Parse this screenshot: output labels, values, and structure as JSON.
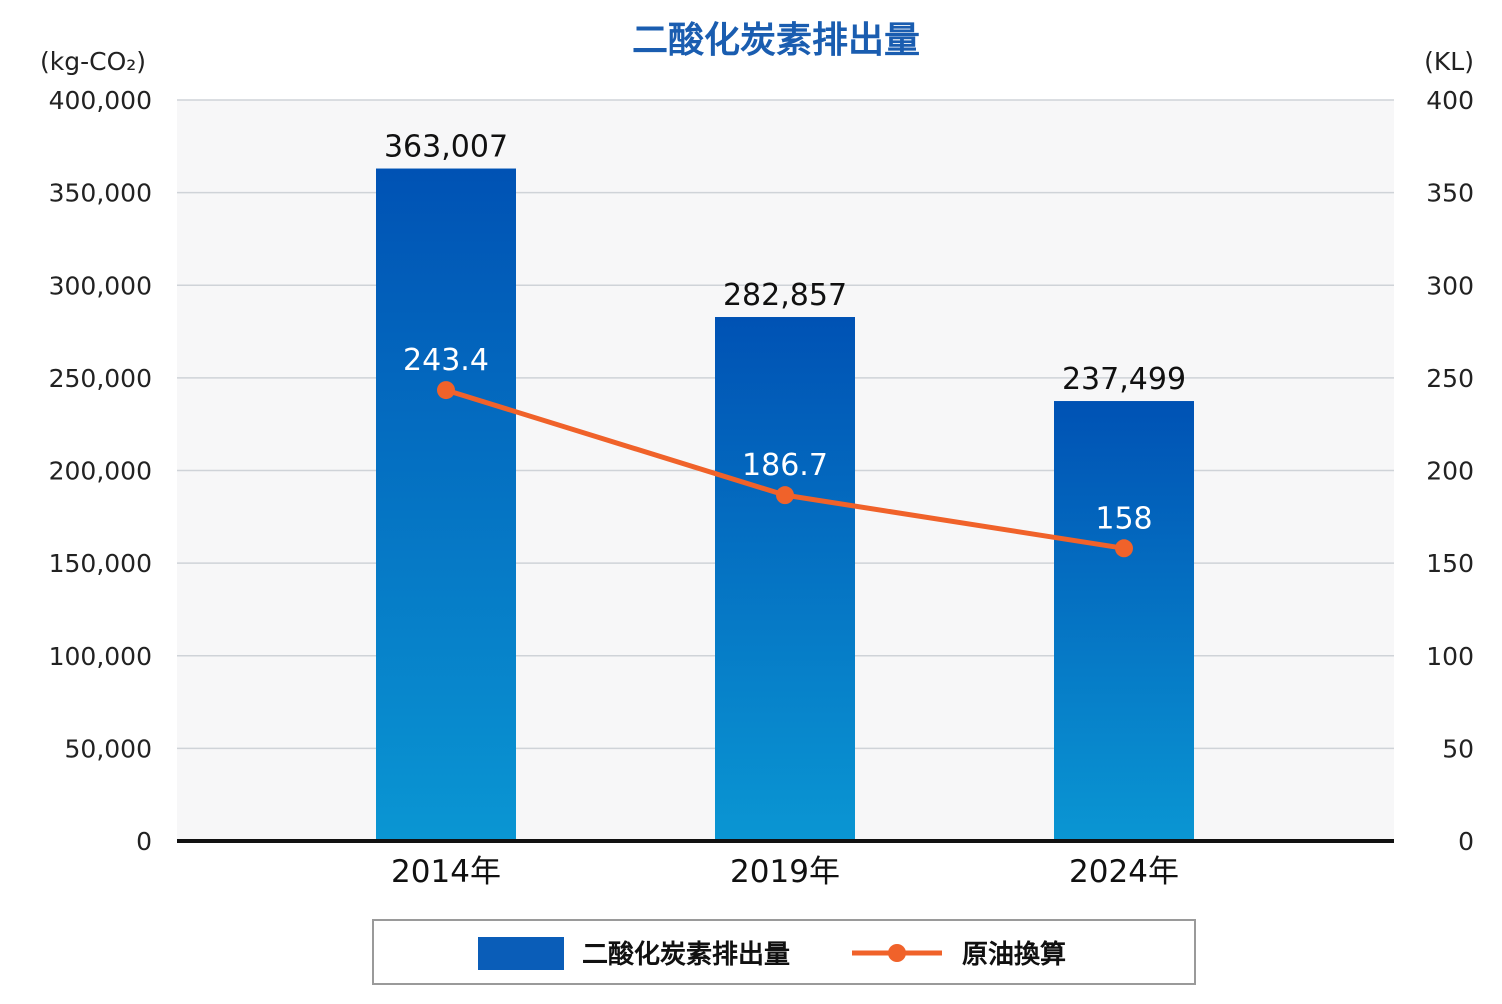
{
  "chart_data": {
    "type": "bar",
    "title": "二酸化炭素排出量",
    "categories": [
      "2014年",
      "2019年",
      "2024年"
    ],
    "series": [
      {
        "name": "二酸化炭素排出量",
        "type": "bar",
        "axis": "left",
        "values": [
          363007,
          282857,
          237499
        ]
      },
      {
        "name": "原油換算",
        "type": "line",
        "axis": "right",
        "values": [
          243.4,
          186.7,
          158
        ]
      }
    ],
    "bar_value_labels": [
      "363,007",
      "282,857",
      "237,499"
    ],
    "line_value_labels": [
      "243.4",
      "186.7",
      "158"
    ],
    "y_left": {
      "unit": "(kg-CO₂)",
      "ylim": [
        0,
        400000
      ],
      "ticks": [
        0,
        50000,
        100000,
        150000,
        200000,
        250000,
        300000,
        350000,
        400000
      ],
      "tick_labels": [
        "0",
        "50,000",
        "100,000",
        "150,000",
        "200,000",
        "250,000",
        "300,000",
        "350,000",
        "400,000"
      ]
    },
    "y_right": {
      "unit": "(KL)",
      "ylim": [
        0,
        400
      ],
      "ticks": [
        0,
        50,
        100,
        150,
        200,
        250,
        300,
        350,
        400
      ],
      "tick_labels": [
        "0",
        "50",
        "100",
        "150",
        "200",
        "250",
        "300",
        "350",
        "400"
      ]
    },
    "grid": true,
    "legend_position": "bottom",
    "colors": {
      "title": "#1a5db0",
      "bar_top": "#0052b4",
      "bar_bottom": "#0a96d3",
      "line": "#f0622a",
      "grid": "#cfd3d8",
      "plot_bg": "#f7f7f8",
      "axis": "#111111"
    }
  }
}
